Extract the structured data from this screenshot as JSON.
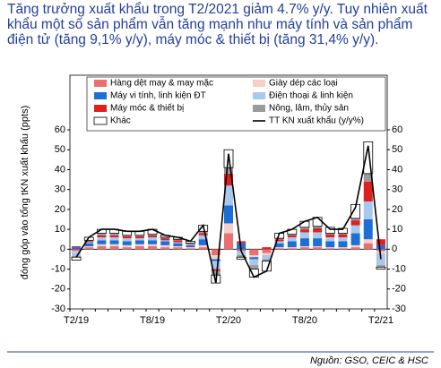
{
  "heading": "Tăng trưởng xuất khẩu trong T2/2021 giảm 4.7% y/y. Tuy nhiên xuất khẩu một số sản phẩm vẫn tăng mạnh như máy tính và sản phẩm điện tử (tăng 9,1% y/y), máy móc & thiết bị (tăng 31,4% y/y).",
  "chart_data": {
    "type": "bar",
    "stacked": true,
    "y_label": "đóng góp vào tổng tKN xuất khẩu (ppts)",
    "categories": [
      "T2/19",
      null,
      null,
      null,
      null,
      null,
      "T8/19",
      null,
      null,
      null,
      null,
      null,
      "T2/20",
      null,
      null,
      null,
      null,
      null,
      "T8/20",
      null,
      null,
      null,
      null,
      null,
      "T2/21"
    ],
    "series": [
      {
        "name": "Hàng dệt may & may mặc",
        "color": "#e8706e",
        "values": [
          -1,
          1,
          1.5,
          1.5,
          1,
          1.5,
          1.5,
          1,
          1,
          0.5,
          1,
          -3,
          8,
          -1,
          -3,
          -2,
          0.5,
          0.5,
          1,
          1,
          0.5,
          0.5,
          1,
          3,
          -1
        ]
      },
      {
        "name": "Giày dép các loại",
        "color": "#f6cfcb",
        "values": [
          -0.5,
          0.5,
          1,
          1,
          1,
          1,
          1,
          1,
          0.5,
          0.5,
          1,
          -2,
          5,
          0,
          -1,
          -1,
          0.5,
          0.5,
          0.5,
          0.5,
          0.5,
          0.5,
          1,
          2,
          -1
        ]
      },
      {
        "name": "Máy vi tính, linh kiện ĐT",
        "color": "#1c6fd6",
        "values": [
          1,
          1.5,
          2,
          2,
          2,
          2,
          2,
          2,
          1.5,
          1,
          3,
          -1,
          9,
          3,
          -1,
          0,
          2,
          3,
          4,
          4,
          3,
          3,
          6,
          10,
          2
        ]
      },
      {
        "name": "Điện thoại & linh kiện",
        "color": "#a9c8ee",
        "values": [
          -2,
          0.5,
          1.5,
          1.5,
          1.5,
          1,
          1.5,
          0.5,
          0.5,
          0.5,
          2,
          -4,
          10,
          -2,
          -3,
          -2,
          1,
          2,
          3,
          3,
          2,
          2,
          4,
          9,
          -6
        ]
      },
      {
        "name": "Máy móc & thiết bị",
        "color": "#e0201e",
        "values": [
          0.5,
          0.5,
          1,
          1,
          1,
          1,
          1,
          1,
          1,
          0.5,
          1,
          -1,
          6,
          1,
          0,
          1,
          1,
          1,
          1.5,
          2,
          1.5,
          1.5,
          2.5,
          10,
          3
        ]
      },
      {
        "name": "Nông, lâm, thủy sản",
        "color": "#9a9a9a",
        "values": [
          -0.5,
          0.5,
          1,
          1,
          0.5,
          0.5,
          0.5,
          0.5,
          0.5,
          0,
          1,
          -2,
          3,
          -1,
          -2,
          -1,
          0.5,
          0.5,
          1,
          1,
          0.5,
          0.5,
          1,
          4,
          -1
        ]
      },
      {
        "name": "Khác",
        "color": "#ffffff",
        "values": [
          -1.5,
          1.5,
          2,
          2,
          2,
          2,
          2.5,
          1,
          1,
          1,
          3,
          -4,
          9,
          -1,
          -4,
          -5,
          2.5,
          2.5,
          3,
          4.5,
          3,
          2.5,
          7,
          16,
          -1
        ]
      },
      {
        "name": "TT KN xuất khẩu (y/y%)",
        "type": "line",
        "color": "#000000",
        "values": [
          -4,
          6,
          10,
          10,
          9,
          9,
          10,
          7,
          6,
          4,
          12,
          -17,
          48,
          -1,
          -14,
          -11,
          8,
          10,
          14,
          16,
          10,
          10,
          21,
          52,
          -5
        ]
      }
    ],
    "ylim": [
      -30,
      60
    ],
    "yticks": [
      -30,
      -20,
      -10,
      0,
      10,
      20,
      30,
      40,
      50,
      60
    ],
    "y2lim": [
      -30,
      60
    ],
    "y2ticks": [
      -30,
      -20,
      -10,
      0,
      10,
      20,
      30,
      40,
      50,
      60
    ]
  },
  "source": "Nguồn: GSO, CEIC & HSC"
}
